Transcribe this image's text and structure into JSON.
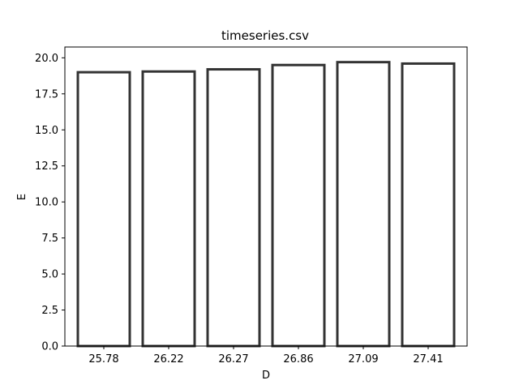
{
  "chart_data": {
    "type": "bar",
    "title": "timeseries.csv",
    "xlabel": "D",
    "ylabel": "E",
    "categories": [
      "25.78",
      "26.22",
      "26.27",
      "26.86",
      "27.09",
      "27.41"
    ],
    "values": [
      19.0,
      19.05,
      19.2,
      19.5,
      19.7,
      19.6
    ],
    "ylim": [
      0,
      20.75
    ],
    "yticks": [
      0.0,
      2.5,
      5.0,
      7.5,
      10.0,
      12.5,
      15.0,
      17.5,
      20.0
    ],
    "ytick_labels": [
      "0.0",
      "2.5",
      "5.0",
      "7.5",
      "10.0",
      "12.5",
      "15.0",
      "17.5",
      "20.0"
    ],
    "grid": false,
    "bar_fill": "#ffffff",
    "bar_edge": "#333333"
  }
}
